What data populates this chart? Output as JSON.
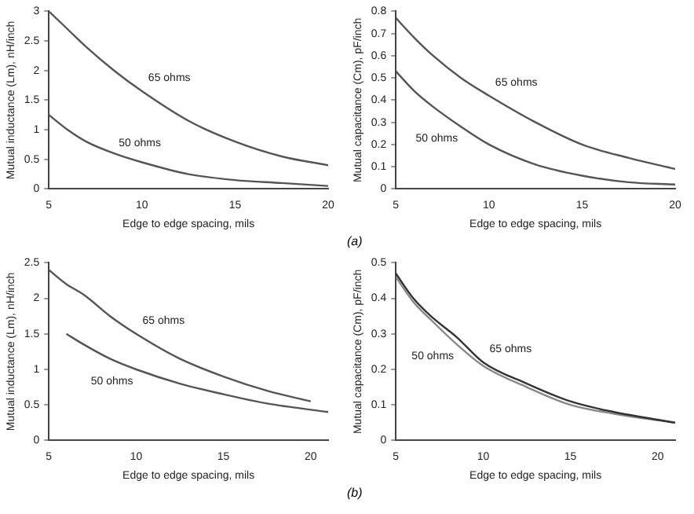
{
  "chart_data": [
    {
      "type": "line",
      "xlabel": "Edge to edge spacing, mils",
      "ylabel": "Mutual inductance (Lm), nH/inch",
      "xlim": [
        5,
        20
      ],
      "xticks": [
        5,
        10,
        15,
        20
      ],
      "ylim": [
        0,
        3
      ],
      "yticks": [
        0,
        0.5,
        1,
        1.5,
        2,
        2.5,
        3
      ],
      "grid": false,
      "legend": false,
      "marker": "none",
      "series": [
        {
          "name": "65 ohms",
          "color": "#555555",
          "x": [
            5,
            6,
            7,
            8.5,
            10,
            12.5,
            15,
            17.5,
            20
          ],
          "values": [
            3.0,
            2.7,
            2.4,
            2.0,
            1.65,
            1.15,
            0.8,
            0.55,
            0.4
          ]
        },
        {
          "name": "50 ohms",
          "color": "#555555",
          "x": [
            5,
            6,
            7,
            8.5,
            10,
            12.5,
            15,
            17.5,
            20
          ],
          "values": [
            1.25,
            1.0,
            0.8,
            0.6,
            0.45,
            0.25,
            0.15,
            0.1,
            0.05
          ]
        }
      ]
    },
    {
      "type": "line",
      "xlabel": "Edge to edge spacing, mils",
      "ylabel": "Mutual capacitance (Cm), pF/inch",
      "xlim": [
        5,
        20
      ],
      "xticks": [
        5,
        10,
        15,
        20
      ],
      "ylim": [
        0,
        0.8
      ],
      "yticks": [
        0,
        0.1,
        0.2,
        0.3,
        0.4,
        0.5,
        0.6,
        0.7,
        0.8
      ],
      "grid": false,
      "legend": false,
      "marker": "none",
      "annotations": [
        "(a)"
      ],
      "series": [
        {
          "name": "65 ohms",
          "color": "#555555",
          "x": [
            5,
            6,
            7,
            8.5,
            10,
            12.5,
            15,
            17.5,
            20
          ],
          "values": [
            0.77,
            0.68,
            0.6,
            0.5,
            0.42,
            0.3,
            0.2,
            0.14,
            0.09
          ]
        },
        {
          "name": "50 ohms",
          "color": "#555555",
          "x": [
            5,
            6,
            7,
            8.5,
            10,
            12.5,
            15,
            17.5,
            20
          ],
          "values": [
            0.53,
            0.44,
            0.37,
            0.28,
            0.2,
            0.11,
            0.06,
            0.03,
            0.02
          ]
        }
      ]
    },
    {
      "type": "line",
      "xlabel": "Edge to edge spacing, mils",
      "ylabel": "Mutual inductance (Lm), nH/inch",
      "xlim": [
        5,
        21
      ],
      "xticks": [
        5,
        10,
        15,
        20
      ],
      "ylim": [
        0,
        2.5
      ],
      "yticks": [
        0,
        0.5,
        1,
        1.5,
        2,
        2.5
      ],
      "grid": false,
      "legend": false,
      "marker": "none",
      "series": [
        {
          "name": "65 ohms",
          "color": "#555555",
          "x": [
            5,
            6,
            7,
            8.5,
            10,
            12.5,
            15,
            17.5,
            20
          ],
          "values": [
            2.4,
            2.2,
            2.05,
            1.75,
            1.5,
            1.15,
            0.9,
            0.7,
            0.55
          ]
        },
        {
          "name": "50 ohms",
          "color": "#555555",
          "x": [
            6,
            7,
            8.5,
            10,
            12.5,
            15,
            17.5,
            21
          ],
          "values": [
            1.5,
            1.35,
            1.15,
            1.0,
            0.8,
            0.65,
            0.52,
            0.4
          ]
        }
      ]
    },
    {
      "type": "line",
      "xlabel": "Edge to edge spacing, mils",
      "ylabel": "Mutual capacitance (Cm), pF/inch",
      "xlim": [
        5,
        21
      ],
      "xticks": [
        5,
        10,
        15,
        20
      ],
      "ylim": [
        0,
        0.5
      ],
      "yticks": [
        0,
        0.1,
        0.2,
        0.3,
        0.4,
        0.5
      ],
      "grid": false,
      "legend": false,
      "marker": "none",
      "annotations": [
        "(b)"
      ],
      "series": [
        {
          "name": "65 ohms",
          "color": "#333333",
          "x": [
            5,
            6,
            7,
            8.5,
            10,
            12.5,
            15,
            17.5,
            21
          ],
          "values": [
            0.47,
            0.4,
            0.35,
            0.29,
            0.22,
            0.16,
            0.11,
            0.08,
            0.05
          ]
        },
        {
          "name": "50 ohms",
          "color": "#888888",
          "x": [
            5,
            6,
            7,
            8.5,
            10,
            12.5,
            15,
            17.5,
            21
          ],
          "values": [
            0.46,
            0.39,
            0.34,
            0.27,
            0.21,
            0.15,
            0.1,
            0.075,
            0.05
          ]
        }
      ]
    }
  ]
}
